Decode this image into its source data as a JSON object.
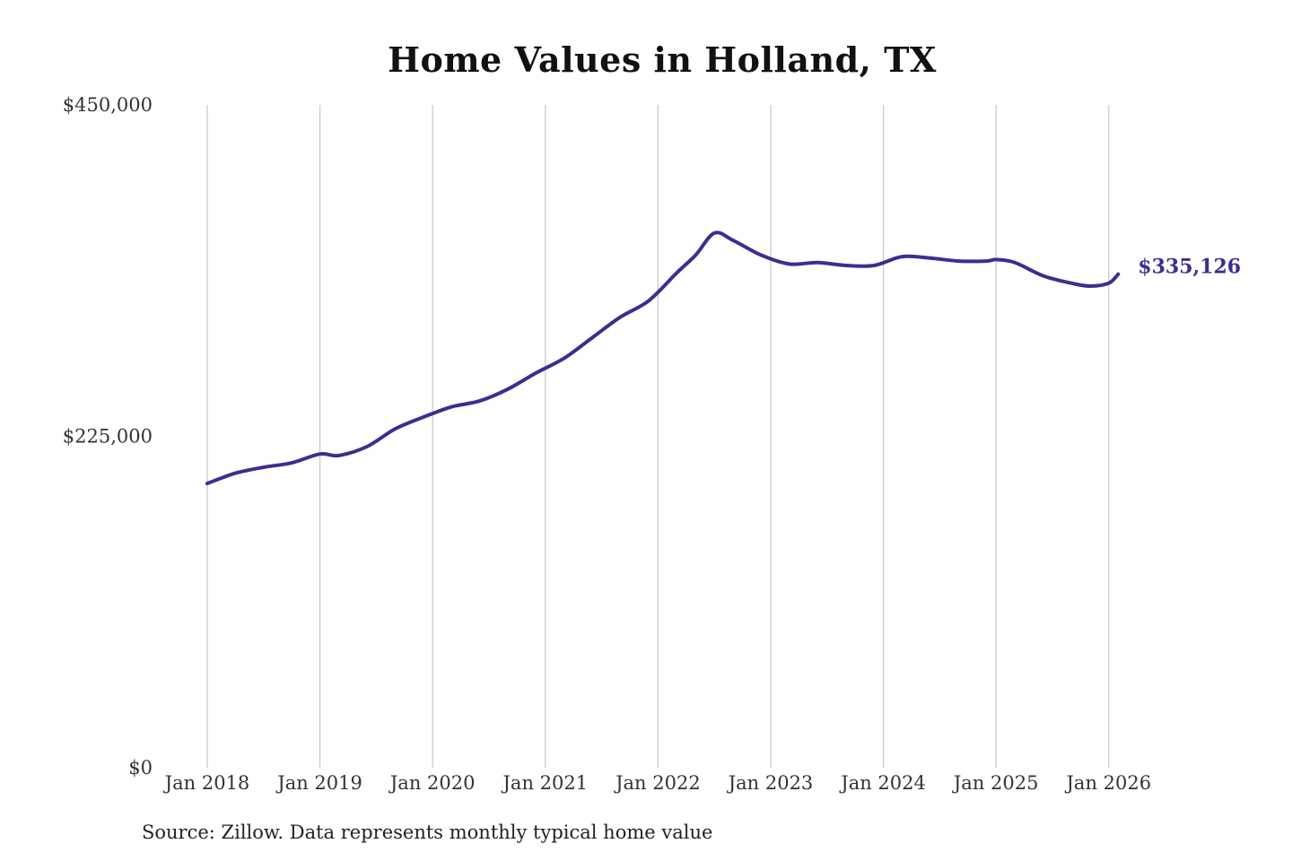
{
  "chart_data": {
    "type": "line",
    "title": "Home Values in Holland, TX",
    "xlabel": "",
    "ylabel": "",
    "ylim": [
      0,
      450000
    ],
    "xlim": [
      "2018-01",
      "2026-02"
    ],
    "y_ticks": [
      {
        "value": 0,
        "label": "$0"
      },
      {
        "value": 225000,
        "label": "$225,000"
      },
      {
        "value": 450000,
        "label": "$450,000"
      }
    ],
    "x_ticks": [
      {
        "date": "2018-01",
        "label": "Jan 2018"
      },
      {
        "date": "2019-01",
        "label": "Jan 2019"
      },
      {
        "date": "2020-01",
        "label": "Jan 2020"
      },
      {
        "date": "2021-01",
        "label": "Jan 2021"
      },
      {
        "date": "2022-01",
        "label": "Jan 2022"
      },
      {
        "date": "2023-01",
        "label": "Jan 2023"
      },
      {
        "date": "2024-01",
        "label": "Jan 2024"
      },
      {
        "date": "2025-01",
        "label": "Jan 2025"
      },
      {
        "date": "2026-01",
        "label": "Jan 2026"
      }
    ],
    "grid": {
      "vertical": true,
      "horizontal": false
    },
    "series": [
      {
        "name": "",
        "color": "#3b2e92",
        "x": [
          "2018-01",
          "2018-04",
          "2018-07",
          "2018-10",
          "2019-01",
          "2019-03",
          "2019-06",
          "2019-09",
          "2019-12",
          "2020-03",
          "2020-06",
          "2020-09",
          "2020-12",
          "2021-03",
          "2021-06",
          "2021-09",
          "2021-12",
          "2022-03",
          "2022-05",
          "2022-07",
          "2022-09",
          "2022-12",
          "2023-03",
          "2023-06",
          "2023-09",
          "2023-12",
          "2024-03",
          "2024-06",
          "2024-09",
          "2024-12",
          "2025-01",
          "2025-03",
          "2025-06",
          "2025-09",
          "2025-11",
          "2026-01",
          "2026-02"
        ],
        "y": [
          193000,
          200000,
          204000,
          207000,
          213000,
          212000,
          218000,
          230000,
          238000,
          245000,
          249000,
          257000,
          268000,
          278000,
          292000,
          306000,
          317000,
          336000,
          348000,
          363000,
          358000,
          348000,
          342000,
          343000,
          341000,
          341000,
          347000,
          346000,
          344000,
          344000,
          345000,
          343000,
          334000,
          329000,
          327000,
          329000,
          335126
        ]
      }
    ],
    "end_label": "$335,126",
    "source": "Source: Zillow. Data represents monthly typical home value"
  }
}
